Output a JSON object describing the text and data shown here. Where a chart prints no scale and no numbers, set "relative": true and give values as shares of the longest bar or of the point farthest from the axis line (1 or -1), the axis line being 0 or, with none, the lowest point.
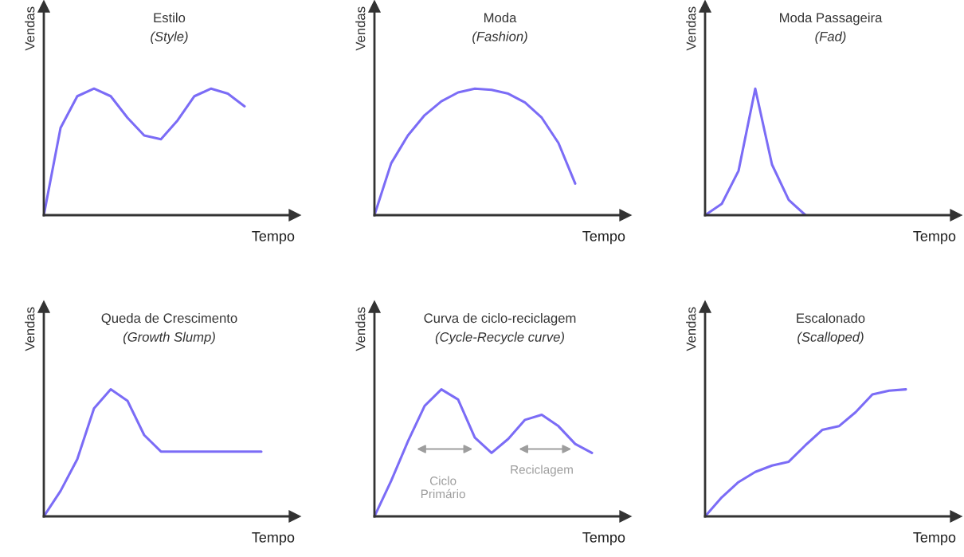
{
  "chart_data": [
    {
      "type": "line",
      "relative": true,
      "title": "Estilo",
      "subtitle": "(Style)",
      "xlabel": "Tempo",
      "ylabel": "Vendas",
      "categories": [
        null,
        null,
        null,
        null,
        null,
        null,
        null,
        null,
        null,
        null,
        null,
        null,
        null,
        null,
        null,
        null
      ],
      "series": [
        {
          "color": "#7b6cf6",
          "values": [
            0,
            0.69,
            0.94,
            1,
            0.94,
            0.77,
            0.63,
            0.6,
            0.75,
            0.94,
            1,
            0.96,
            0.86,
            null,
            null,
            null
          ]
        }
      ]
    },
    {
      "type": "line",
      "relative": true,
      "title": "Moda",
      "subtitle": "(Fashion)",
      "xlabel": "Tempo",
      "ylabel": "Vendas",
      "categories": [
        null,
        null,
        null,
        null,
        null,
        null,
        null,
        null,
        null,
        null,
        null,
        null,
        null,
        null,
        null,
        null
      ],
      "series": [
        {
          "color": "#7b6cf6",
          "values": [
            0,
            0.41,
            0.63,
            0.79,
            0.9,
            0.97,
            1,
            0.99,
            0.96,
            0.89,
            0.77,
            0.57,
            0.25,
            null,
            null,
            null
          ]
        }
      ]
    },
    {
      "type": "line",
      "relative": true,
      "title": "Moda Passageira",
      "subtitle": "(Fad)",
      "xlabel": "Tempo",
      "ylabel": "Vendas",
      "categories": [
        null,
        null,
        null,
        null,
        null,
        null,
        null,
        null,
        null,
        null,
        null,
        null,
        null,
        null,
        null,
        null
      ],
      "series": [
        {
          "color": "#7b6cf6",
          "values": [
            0,
            0.09,
            0.35,
            1,
            0.4,
            0.12,
            0,
            null,
            null,
            null,
            null,
            null,
            null,
            null,
            null,
            null
          ]
        }
      ]
    },
    {
      "type": "line",
      "relative": true,
      "title": "Queda de Crescimento",
      "subtitle": "(Growth Slump)",
      "xlabel": "Tempo",
      "ylabel": "Vendas",
      "categories": [
        null,
        null,
        null,
        null,
        null,
        null,
        null,
        null,
        null,
        null,
        null,
        null,
        null,
        null,
        null,
        null
      ],
      "series": [
        {
          "color": "#7b6cf6",
          "values": [
            0,
            0.2,
            0.45,
            0.85,
            1,
            0.91,
            0.64,
            0.51,
            0.51,
            0.51,
            0.51,
            0.51,
            0.51,
            0.51,
            null,
            null
          ]
        }
      ]
    },
    {
      "type": "line",
      "relative": true,
      "title": "Curva de ciclo-reciclagem",
      "subtitle": "(Cycle-Recycle curve)",
      "xlabel": "Tempo",
      "ylabel": "Vendas",
      "categories": [
        null,
        null,
        null,
        null,
        null,
        null,
        null,
        null,
        null,
        null,
        null,
        null,
        null,
        null,
        null,
        null
      ],
      "annotations": [
        "Ciclo\nPrimário",
        "Reciclagem"
      ],
      "series": [
        {
          "color": "#7b6cf6",
          "values": [
            0,
            0.28,
            0.59,
            0.87,
            1,
            0.92,
            0.62,
            0.5,
            0.61,
            0.76,
            0.8,
            0.71,
            0.57,
            0.5,
            null,
            null
          ]
        }
      ]
    },
    {
      "type": "line",
      "relative": true,
      "title": "Escalonado",
      "subtitle": "(Scalloped)",
      "xlabel": "Tempo",
      "ylabel": "Vendas",
      "categories": [
        null,
        null,
        null,
        null,
        null,
        null,
        null,
        null,
        null,
        null,
        null,
        null,
        null,
        null,
        null,
        null
      ],
      "series": [
        {
          "color": "#7b6cf6",
          "values": [
            0,
            0.15,
            0.27,
            0.35,
            0.4,
            0.43,
            0.56,
            0.68,
            0.71,
            0.82,
            0.96,
            0.99,
            1,
            null,
            null,
            null
          ]
        }
      ]
    }
  ]
}
